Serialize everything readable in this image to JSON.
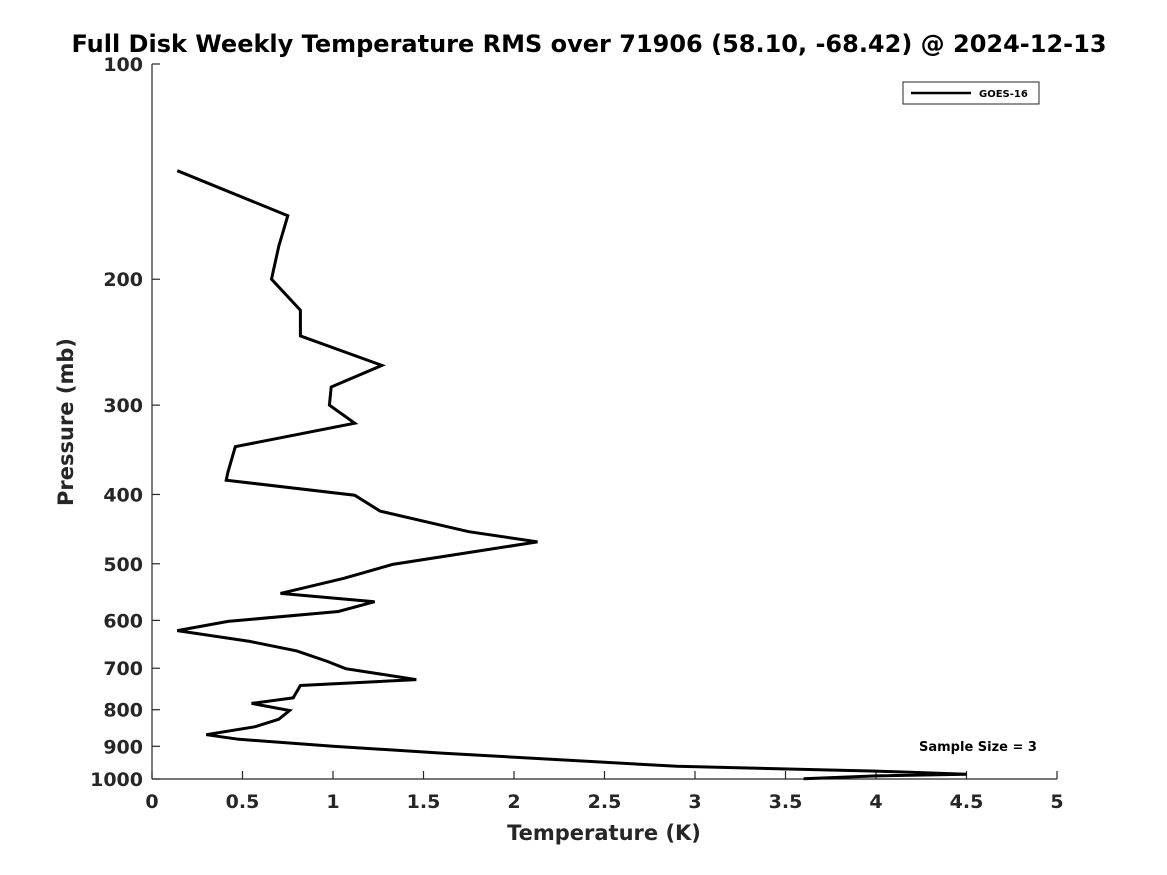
{
  "chart_data": {
    "type": "line",
    "title": "Full Disk Weekly Temperature RMS over 71906 (58.10, -68.42) @ 2024-12-13",
    "xlabel": "Temperature (K)",
    "ylabel": "Pressure (mb)",
    "xlim": [
      0,
      5
    ],
    "ylim": [
      100,
      1000
    ],
    "yscale": "log",
    "y_reversed": true,
    "xticks": [
      "0",
      "0.5",
      "1",
      "1.5",
      "2",
      "2.5",
      "3",
      "3.5",
      "4",
      "4.5",
      "5"
    ],
    "yticks": [
      "100",
      "200",
      "300",
      "400",
      "500",
      "600",
      "700",
      "800",
      "900",
      "1000"
    ],
    "grid": false,
    "legend": {
      "placement": "top-right"
    },
    "annotation": "Sample Size = 3",
    "series": [
      {
        "name": "GOES-16",
        "color": "#000000",
        "points": [
          [
            0.14,
            141
          ],
          [
            0.75,
            163
          ],
          [
            0.7,
            180
          ],
          [
            0.66,
            200
          ],
          [
            0.82,
            221
          ],
          [
            0.82,
            240
          ],
          [
            1.27,
            264
          ],
          [
            0.99,
            283
          ],
          [
            0.98,
            300
          ],
          [
            1.12,
            318
          ],
          [
            0.46,
            343
          ],
          [
            0.42,
            372
          ],
          [
            0.41,
            382
          ],
          [
            1.12,
            401
          ],
          [
            1.26,
            422
          ],
          [
            1.75,
            451
          ],
          [
            2.13,
            466
          ],
          [
            1.8,
            480
          ],
          [
            1.33,
            501
          ],
          [
            1.06,
            524
          ],
          [
            0.71,
            550
          ],
          [
            1.23,
            565
          ],
          [
            1.03,
            583
          ],
          [
            0.42,
            602
          ],
          [
            0.14,
            620
          ],
          [
            0.54,
            642
          ],
          [
            0.8,
            662
          ],
          [
            0.97,
            685
          ],
          [
            1.07,
            701
          ],
          [
            1.46,
            726
          ],
          [
            0.82,
            740
          ],
          [
            0.78,
            770
          ],
          [
            0.55,
            784
          ],
          [
            0.76,
            802
          ],
          [
            0.7,
            825
          ],
          [
            0.57,
            845
          ],
          [
            0.3,
            867
          ],
          [
            0.48,
            880
          ],
          [
            1.0,
            900
          ],
          [
            1.6,
            920
          ],
          [
            2.9,
            960
          ],
          [
            4.0,
            975
          ],
          [
            4.5,
            985
          ],
          [
            4.0,
            990
          ],
          [
            3.6,
            999
          ]
        ]
      }
    ]
  }
}
